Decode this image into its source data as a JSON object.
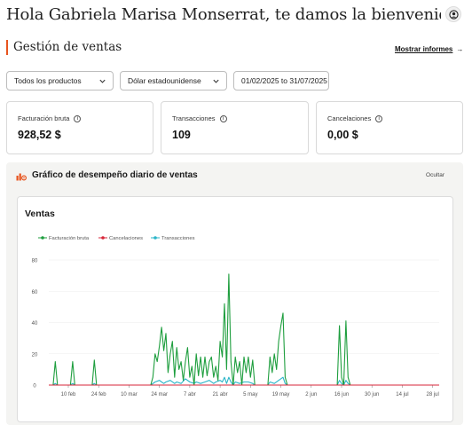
{
  "header": {
    "welcome": "Hola Gabriela Marisa Monserrat, te damos la bienvenida",
    "avatar_icon": "user-avatar-icon"
  },
  "section": {
    "title": "Gestión de ventas",
    "report_link": "Mostrar informes",
    "report_arrow": "→",
    "accent": "#e8541e"
  },
  "filters": {
    "product": "Todos los productos",
    "currency": "Dólar estadounidense",
    "date_range": "01/02/2025 to 31/07/2025"
  },
  "metrics": [
    {
      "label": "Facturación bruta",
      "value": "928,52 $"
    },
    {
      "label": "Transacciones",
      "value": "109"
    },
    {
      "label": "Cancelaciones",
      "value": "0,00 $"
    }
  ],
  "panel": {
    "title": "Gráfico de desempeño diario de ventas",
    "hide_label": "Ocultar",
    "icon": "chart-settings-icon"
  },
  "chart_data": {
    "type": "line",
    "title": "Ventas",
    "xlabel": "",
    "ylabel": "",
    "ylim": [
      0,
      80
    ],
    "yticks": [
      0,
      20,
      40,
      60,
      80
    ],
    "grid": true,
    "legend_position": "top-left",
    "x_start": "2025-02-01",
    "x_end": "2025-07-31",
    "xticks": [
      {
        "date": "2025-02-10",
        "label": "10 feb"
      },
      {
        "date": "2025-02-24",
        "label": "24 feb"
      },
      {
        "date": "2025-03-10",
        "label": "10 mar"
      },
      {
        "date": "2025-03-24",
        "label": "24 mar"
      },
      {
        "date": "2025-04-07",
        "label": "7 abr"
      },
      {
        "date": "2025-04-21",
        "label": "21 abr"
      },
      {
        "date": "2025-05-05",
        "label": "5 may"
      },
      {
        "date": "2025-05-19",
        "label": "19 may"
      },
      {
        "date": "2025-06-02",
        "label": "2 jun"
      },
      {
        "date": "2025-06-16",
        "label": "16 jun"
      },
      {
        "date": "2025-06-30",
        "label": "30 jun"
      },
      {
        "date": "2025-07-14",
        "label": "14 jul"
      },
      {
        "date": "2025-07-28",
        "label": "28 jul"
      }
    ],
    "series": [
      {
        "name": "Facturación bruta",
        "color": "#1e9e3e",
        "points": [
          [
            "2025-02-01",
            0
          ],
          [
            "2025-02-03",
            0
          ],
          [
            "2025-02-04",
            15
          ],
          [
            "2025-02-05",
            0
          ],
          [
            "2025-02-11",
            0
          ],
          [
            "2025-02-12",
            15
          ],
          [
            "2025-02-13",
            0
          ],
          [
            "2025-02-21",
            0
          ],
          [
            "2025-02-22",
            16
          ],
          [
            "2025-02-23",
            0
          ],
          [
            "2025-03-20",
            0
          ],
          [
            "2025-03-21",
            5
          ],
          [
            "2025-03-22",
            20
          ],
          [
            "2025-03-23",
            15
          ],
          [
            "2025-03-24",
            25
          ],
          [
            "2025-03-25",
            37
          ],
          [
            "2025-03-26",
            22
          ],
          [
            "2025-03-27",
            33
          ],
          [
            "2025-03-28",
            8
          ],
          [
            "2025-03-29",
            20
          ],
          [
            "2025-03-30",
            28
          ],
          [
            "2025-03-31",
            5
          ],
          [
            "2025-04-01",
            24
          ],
          [
            "2025-04-02",
            10
          ],
          [
            "2025-04-03",
            15
          ],
          [
            "2025-04-04",
            3
          ],
          [
            "2025-04-05",
            15
          ],
          [
            "2025-04-06",
            24
          ],
          [
            "2025-04-07",
            5
          ],
          [
            "2025-04-08",
            12
          ],
          [
            "2025-04-09",
            0
          ],
          [
            "2025-04-10",
            20
          ],
          [
            "2025-04-11",
            6
          ],
          [
            "2025-04-12",
            18
          ],
          [
            "2025-04-13",
            5
          ],
          [
            "2025-04-14",
            18
          ],
          [
            "2025-04-15",
            6
          ],
          [
            "2025-04-16",
            15
          ],
          [
            "2025-04-17",
            18
          ],
          [
            "2025-04-18",
            5
          ],
          [
            "2025-04-19",
            12
          ],
          [
            "2025-04-20",
            3
          ],
          [
            "2025-04-21",
            28
          ],
          [
            "2025-04-22",
            18
          ],
          [
            "2025-04-23",
            52
          ],
          [
            "2025-04-24",
            10
          ],
          [
            "2025-04-25",
            71
          ],
          [
            "2025-04-26",
            15
          ],
          [
            "2025-04-27",
            0
          ],
          [
            "2025-04-28",
            18
          ],
          [
            "2025-04-29",
            8
          ],
          [
            "2025-04-30",
            15
          ],
          [
            "2025-05-01",
            0
          ],
          [
            "2025-05-02",
            18
          ],
          [
            "2025-05-03",
            8
          ],
          [
            "2025-05-04",
            18
          ],
          [
            "2025-05-05",
            5
          ],
          [
            "2025-05-06",
            16
          ],
          [
            "2025-05-07",
            0
          ],
          [
            "2025-05-13",
            0
          ],
          [
            "2025-05-14",
            18
          ],
          [
            "2025-05-15",
            8
          ],
          [
            "2025-05-16",
            20
          ],
          [
            "2025-05-17",
            10
          ],
          [
            "2025-05-18",
            28
          ],
          [
            "2025-05-19",
            38
          ],
          [
            "2025-05-20",
            46
          ],
          [
            "2025-05-21",
            5
          ],
          [
            "2025-05-22",
            0
          ],
          [
            "2025-06-14",
            0
          ],
          [
            "2025-06-15",
            38
          ],
          [
            "2025-06-16",
            5
          ],
          [
            "2025-06-17",
            0
          ],
          [
            "2025-06-18",
            41
          ],
          [
            "2025-06-19",
            5
          ],
          [
            "2025-06-20",
            0
          ],
          [
            "2025-07-31",
            0
          ]
        ]
      },
      {
        "name": "Cancelaciones",
        "color": "#d72638",
        "points": [
          [
            "2025-02-01",
            0
          ],
          [
            "2025-07-31",
            0
          ]
        ]
      },
      {
        "name": "Transacciones",
        "color": "#2bb5c8",
        "points": [
          [
            "2025-02-01",
            0
          ],
          [
            "2025-02-03",
            0
          ],
          [
            "2025-02-04",
            1
          ],
          [
            "2025-02-05",
            0
          ],
          [
            "2025-02-11",
            0
          ],
          [
            "2025-02-12",
            1
          ],
          [
            "2025-02-13",
            0
          ],
          [
            "2025-02-21",
            0
          ],
          [
            "2025-02-22",
            1
          ],
          [
            "2025-02-23",
            0
          ],
          [
            "2025-03-20",
            0
          ],
          [
            "2025-03-22",
            2
          ],
          [
            "2025-03-24",
            3
          ],
          [
            "2025-03-25",
            2
          ],
          [
            "2025-03-26",
            1
          ],
          [
            "2025-03-27",
            2
          ],
          [
            "2025-03-29",
            3
          ],
          [
            "2025-03-31",
            1
          ],
          [
            "2025-04-01",
            2
          ],
          [
            "2025-04-03",
            1
          ],
          [
            "2025-04-05",
            4
          ],
          [
            "2025-04-07",
            2
          ],
          [
            "2025-04-09",
            1
          ],
          [
            "2025-04-10",
            2
          ],
          [
            "2025-04-12",
            1
          ],
          [
            "2025-04-14",
            2
          ],
          [
            "2025-04-16",
            3
          ],
          [
            "2025-04-18",
            1
          ],
          [
            "2025-04-19",
            2
          ],
          [
            "2025-04-21",
            3
          ],
          [
            "2025-04-22",
            2
          ],
          [
            "2025-04-23",
            5
          ],
          [
            "2025-04-24",
            1
          ],
          [
            "2025-04-25",
            5
          ],
          [
            "2025-04-26",
            2
          ],
          [
            "2025-04-27",
            0
          ],
          [
            "2025-04-28",
            2
          ],
          [
            "2025-04-30",
            1
          ],
          [
            "2025-05-02",
            2
          ],
          [
            "2025-05-04",
            2
          ],
          [
            "2025-05-06",
            1
          ],
          [
            "2025-05-07",
            0
          ],
          [
            "2025-05-13",
            0
          ],
          [
            "2025-05-14",
            2
          ],
          [
            "2025-05-16",
            1
          ],
          [
            "2025-05-18",
            3
          ],
          [
            "2025-05-20",
            5
          ],
          [
            "2025-05-21",
            1
          ],
          [
            "2025-05-22",
            0
          ],
          [
            "2025-06-14",
            0
          ],
          [
            "2025-06-15",
            3
          ],
          [
            "2025-06-16",
            1
          ],
          [
            "2025-06-17",
            0
          ],
          [
            "2025-06-18",
            3
          ],
          [
            "2025-06-19",
            1
          ],
          [
            "2025-06-20",
            0
          ],
          [
            "2025-07-31",
            0
          ]
        ]
      }
    ]
  }
}
